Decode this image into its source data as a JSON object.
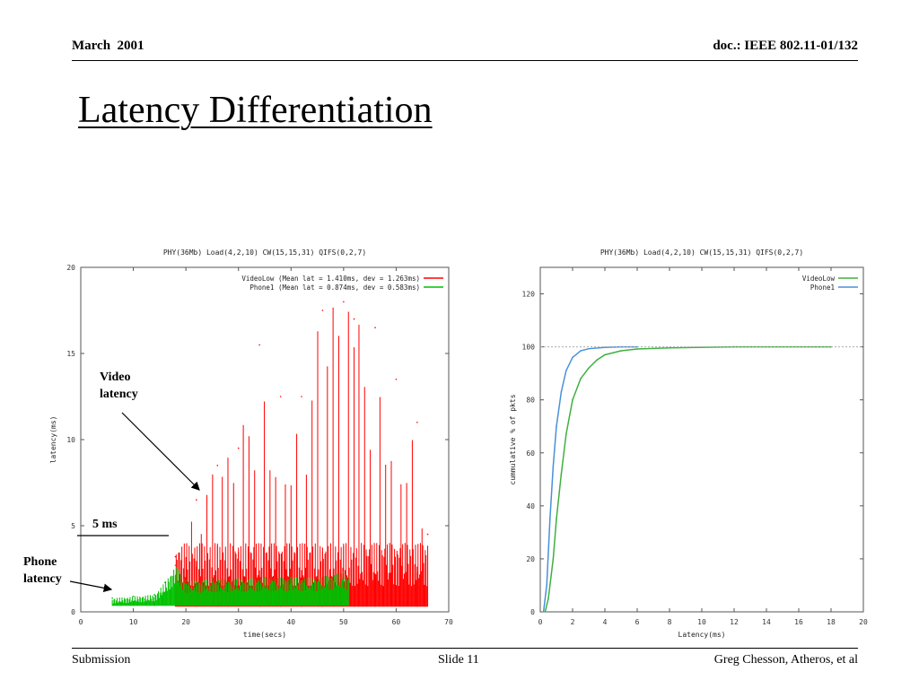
{
  "header": {
    "date": "March  2001",
    "doc": "doc.: IEEE 802.11-01/132"
  },
  "slide_title": "Latency Differentiation",
  "footer": {
    "left": "Submission",
    "center": "Slide 11",
    "right": "Greg Chesson, Atheros, et al"
  },
  "annotations": {
    "video_line1": "Video",
    "video_line2": "latency",
    "threshold": "5 ms",
    "phone_line1": "Phone",
    "phone_line2": "latency"
  },
  "chart_data": [
    {
      "type": "line",
      "title": "PHY(36Mb) Load(4,2,10) CW(15,15,31) QIFS(0,2,7)",
      "xlabel": "time(secs)",
      "ylabel": "latency(ms)",
      "xlim": [
        0,
        70
      ],
      "ylim": [
        0,
        20
      ],
      "xticks": [
        0,
        10,
        20,
        30,
        40,
        50,
        60,
        70
      ],
      "yticks": [
        0,
        5,
        10,
        15,
        20
      ],
      "legend_position": "top-right",
      "series": [
        {
          "name": "VideoLow (Mean lat =  1.410ms, dev =  1.263ms)",
          "color": "#ff0000",
          "x": [
            18,
            22,
            26,
            30,
            34,
            38,
            42,
            46,
            50,
            52,
            56,
            60,
            64,
            66
          ],
          "y": [
            3.2,
            6.5,
            8.5,
            9.5,
            15.5,
            12.5,
            12.5,
            17.5,
            18.0,
            17.0,
            16.5,
            13.5,
            11.0,
            4.5
          ]
        },
        {
          "name": "Phone1 (Mean lat =  0.874ms, dev =  0.583ms)",
          "color": "#00c000",
          "x": [
            6,
            10,
            14,
            16,
            18,
            20,
            25,
            30,
            35,
            40,
            45,
            50,
            51
          ],
          "y": [
            0.8,
            0.9,
            1.0,
            1.7,
            2.7,
            1.8,
            1.9,
            1.9,
            2.0,
            2.0,
            2.0,
            2.3,
            2.0
          ]
        }
      ]
    },
    {
      "type": "line",
      "title": "PHY(36Mb) Load(4,2,10) CW(15,15,31) QIFS(0,2,7)",
      "xlabel": "Latency(ms)",
      "ylabel": "cummulative % of pkts",
      "xlim": [
        0,
        20
      ],
      "ylim": [
        0,
        130
      ],
      "xticks": [
        0,
        2,
        4,
        6,
        8,
        10,
        12,
        14,
        16,
        18,
        20
      ],
      "yticks": [
        0,
        20,
        40,
        60,
        80,
        100,
        120
      ],
      "legend_position": "top-right",
      "series": [
        {
          "name": "VideoLow",
          "color": "#40b040",
          "x": [
            0.3,
            0.5,
            0.8,
            1.0,
            1.3,
            1.6,
            2.0,
            2.5,
            3.0,
            3.5,
            4.0,
            5.0,
            6.0,
            8.0,
            12.0,
            18.0
          ],
          "y": [
            0,
            5,
            20,
            35,
            52,
            67,
            80,
            88,
            92,
            95,
            97,
            98.5,
            99.2,
            99.6,
            100,
            100
          ]
        },
        {
          "name": "Phone1",
          "color": "#4a90d9",
          "x": [
            0.2,
            0.4,
            0.6,
            0.8,
            1.0,
            1.3,
            1.6,
            2.0,
            2.5,
            3.0,
            4.0,
            5.0,
            6.0
          ],
          "y": [
            0,
            10,
            35,
            55,
            70,
            83,
            91,
            96,
            98.5,
            99.3,
            99.8,
            100,
            100
          ]
        }
      ]
    }
  ]
}
